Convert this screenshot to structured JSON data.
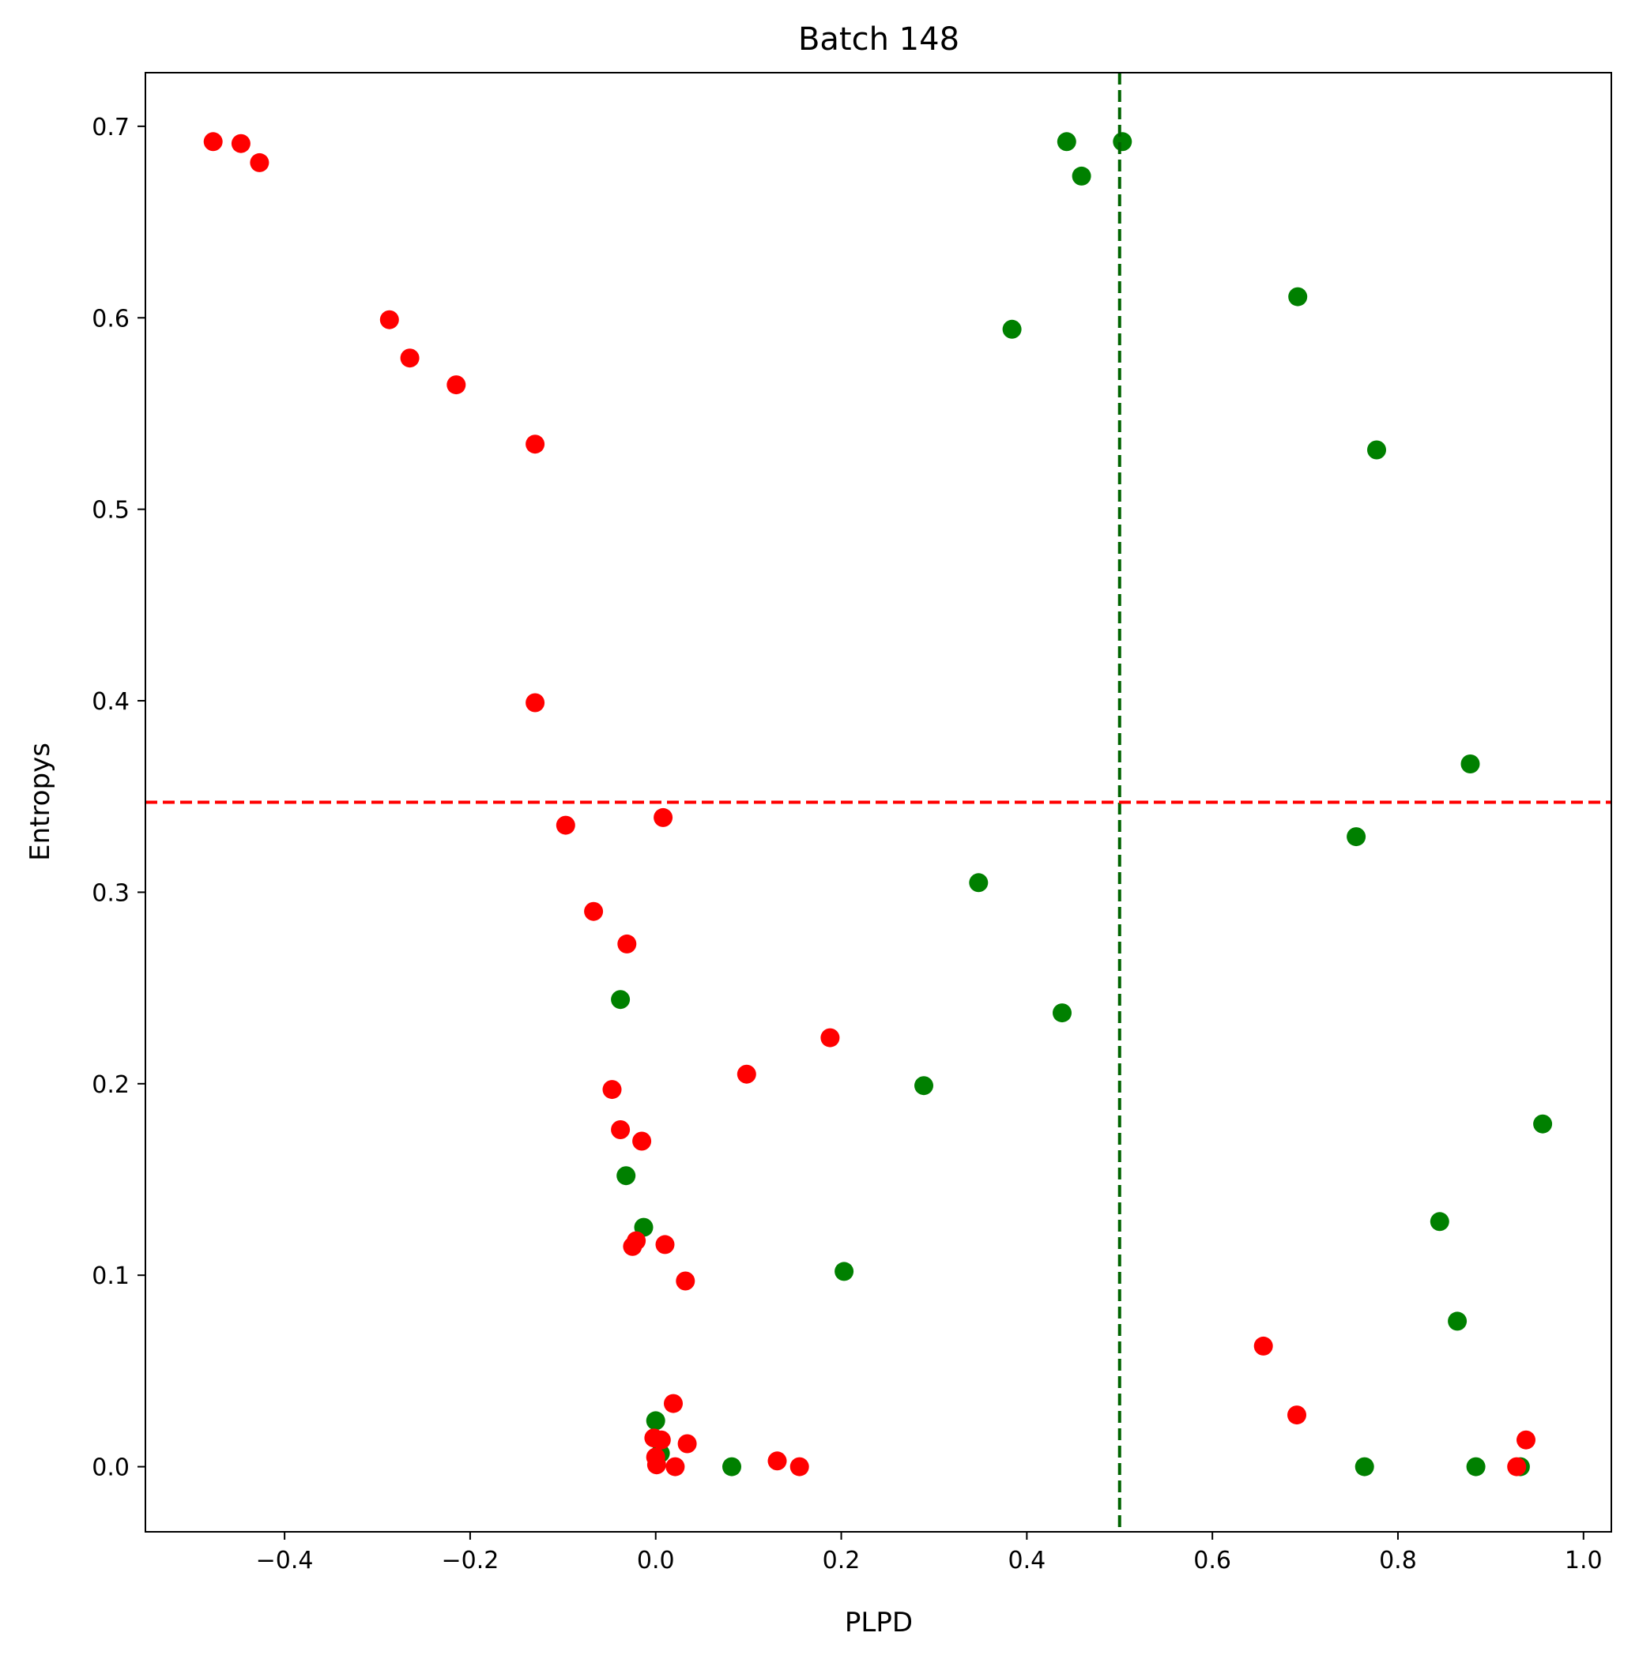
{
  "chart_data": {
    "type": "scatter",
    "title": "Batch 148",
    "xlabel": "PLPD",
    "ylabel": "Entropys",
    "xlim": [
      -0.55,
      1.03
    ],
    "ylim": [
      -0.034,
      0.728
    ],
    "x_ticks": [
      -0.4,
      -0.2,
      0.0,
      0.2,
      0.4,
      0.6,
      0.8,
      1.0
    ],
    "x_tick_labels": [
      "−0.4",
      "−0.2",
      "0.0",
      "0.2",
      "0.4",
      "0.6",
      "0.8",
      "1.0"
    ],
    "y_ticks": [
      0.0,
      0.1,
      0.2,
      0.3,
      0.4,
      0.5,
      0.6,
      0.7
    ],
    "y_tick_labels": [
      "0.0",
      "0.1",
      "0.2",
      "0.3",
      "0.4",
      "0.5",
      "0.6",
      "0.7"
    ],
    "grid": false,
    "reference_lines": [
      {
        "orientation": "vertical",
        "value": 0.5,
        "color": "#006400",
        "style": "dashed"
      },
      {
        "orientation": "horizontal",
        "value": 0.347,
        "color": "#ff0000",
        "style": "dashed"
      }
    ],
    "series": [
      {
        "color": "#008000",
        "points": [
          [
            0.443,
            0.692
          ],
          [
            0.503,
            0.692
          ],
          [
            0.459,
            0.674
          ],
          [
            0.384,
            0.594
          ],
          [
            0.692,
            0.611
          ],
          [
            0.777,
            0.531
          ],
          [
            0.878,
            0.367
          ],
          [
            0.755,
            0.329
          ],
          [
            0.348,
            0.305
          ],
          [
            -0.038,
            0.244
          ],
          [
            0.438,
            0.237
          ],
          [
            0.289,
            0.199
          ],
          [
            0.956,
            0.179
          ],
          [
            -0.032,
            0.152
          ],
          [
            -0.013,
            0.125
          ],
          [
            0.845,
            0.128
          ],
          [
            0.203,
            0.102
          ],
          [
            0.864,
            0.076
          ],
          [
            0.0,
            0.024
          ],
          [
            0.005,
            0.007
          ],
          [
            0.082,
            0.0
          ],
          [
            0.764,
            0.0
          ],
          [
            0.884,
            0.0
          ],
          [
            0.932,
            0.0
          ]
        ]
      },
      {
        "color": "#ff0000",
        "points": [
          [
            -0.477,
            0.692
          ],
          [
            -0.447,
            0.691
          ],
          [
            -0.427,
            0.681
          ],
          [
            -0.287,
            0.599
          ],
          [
            -0.265,
            0.579
          ],
          [
            -0.215,
            0.565
          ],
          [
            -0.13,
            0.534
          ],
          [
            -0.13,
            0.399
          ],
          [
            -0.097,
            0.335
          ],
          [
            0.008,
            0.339
          ],
          [
            -0.067,
            0.29
          ],
          [
            -0.031,
            0.273
          ],
          [
            0.188,
            0.224
          ],
          [
            0.098,
            0.205
          ],
          [
            -0.047,
            0.197
          ],
          [
            -0.038,
            0.176
          ],
          [
            -0.015,
            0.17
          ],
          [
            -0.021,
            0.118
          ],
          [
            -0.025,
            0.115
          ],
          [
            0.01,
            0.116
          ],
          [
            0.032,
            0.097
          ],
          [
            0.655,
            0.063
          ],
          [
            0.019,
            0.033
          ],
          [
            0.691,
            0.027
          ],
          [
            -0.002,
            0.015
          ],
          [
            0.006,
            0.014
          ],
          [
            0.034,
            0.012
          ],
          [
            0.0,
            0.005
          ],
          [
            0.001,
            0.001
          ],
          [
            0.021,
            0.0
          ],
          [
            0.131,
            0.003
          ],
          [
            0.155,
            0.0
          ],
          [
            0.938,
            0.014
          ],
          [
            0.928,
            0.0
          ]
        ]
      }
    ]
  }
}
